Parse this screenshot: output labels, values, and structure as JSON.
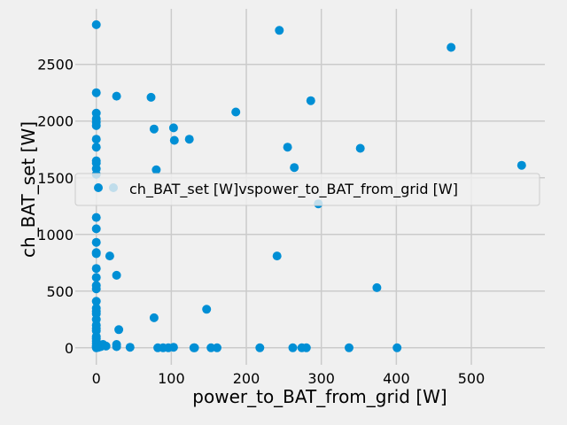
{
  "chart_data": {
    "type": "scatter",
    "title": "",
    "xlabel": "power_to_BAT_from_grid [W]",
    "ylabel": "ch_BAT_set [W]",
    "xlim": [
      -28,
      598
    ],
    "ylim": [
      -150,
      2990
    ],
    "xticks": [
      0,
      100,
      200,
      300,
      400,
      500
    ],
    "yticks": [
      0,
      500,
      1000,
      1500,
      2000,
      2500
    ],
    "grid": true,
    "legend_position": "center-right",
    "colors": {
      "background": "#f0f0f0",
      "grid": "#cbcbcb",
      "marker": "#008fd5"
    },
    "series": [
      {
        "name": "ch_BAT_set [W]vspower_to_BAT_from_grid [W]",
        "points": [
          [
            0,
            2850
          ],
          [
            0,
            2250
          ],
          [
            0,
            2070
          ],
          [
            0,
            2020
          ],
          [
            0,
            1990
          ],
          [
            0,
            1960
          ],
          [
            0,
            1840
          ],
          [
            0,
            1770
          ],
          [
            0,
            1650
          ],
          [
            0,
            1630
          ],
          [
            0,
            1580
          ],
          [
            0,
            1530
          ],
          [
            0,
            1150
          ],
          [
            0,
            1050
          ],
          [
            0,
            930
          ],
          [
            0,
            840
          ],
          [
            0,
            830
          ],
          [
            0,
            700
          ],
          [
            0,
            620
          ],
          [
            0,
            550
          ],
          [
            0,
            520
          ],
          [
            0,
            410
          ],
          [
            0,
            350
          ],
          [
            0,
            320
          ],
          [
            0,
            300
          ],
          [
            0,
            250
          ],
          [
            0,
            200
          ],
          [
            0,
            170
          ],
          [
            0,
            150
          ],
          [
            0,
            100
          ],
          [
            0,
            80
          ],
          [
            0,
            60
          ],
          [
            0,
            40
          ],
          [
            0,
            20
          ],
          [
            0,
            10
          ],
          [
            0,
            0
          ],
          [
            3,
            5
          ],
          [
            6,
            10
          ],
          [
            9,
            30
          ],
          [
            13,
            15
          ],
          [
            18,
            810
          ],
          [
            27,
            2220
          ],
          [
            27,
            640
          ],
          [
            27,
            30
          ],
          [
            27,
            10
          ],
          [
            30,
            160
          ],
          [
            45,
            5
          ],
          [
            73,
            2210
          ],
          [
            77,
            1930
          ],
          [
            77,
            265
          ],
          [
            80,
            1570
          ],
          [
            82,
            0
          ],
          [
            89,
            0
          ],
          [
            96,
            0
          ],
          [
            103,
            1940
          ],
          [
            103,
            5
          ],
          [
            104,
            1830
          ],
          [
            124,
            1840
          ],
          [
            130,
            0
          ],
          [
            131,
            0
          ],
          [
            147,
            340
          ],
          [
            153,
            0
          ],
          [
            161,
            0
          ],
          [
            186,
            2080
          ],
          [
            218,
            0
          ],
          [
            241,
            810
          ],
          [
            244,
            2800
          ],
          [
            255,
            1770
          ],
          [
            262,
            0
          ],
          [
            264,
            1590
          ],
          [
            274,
            0
          ],
          [
            280,
            0
          ],
          [
            286,
            2180
          ],
          [
            296,
            1270
          ],
          [
            337,
            0
          ],
          [
            352,
            1760
          ],
          [
            374,
            530
          ],
          [
            401,
            0
          ],
          [
            473,
            2650
          ],
          [
            567,
            1610
          ]
        ]
      }
    ]
  }
}
